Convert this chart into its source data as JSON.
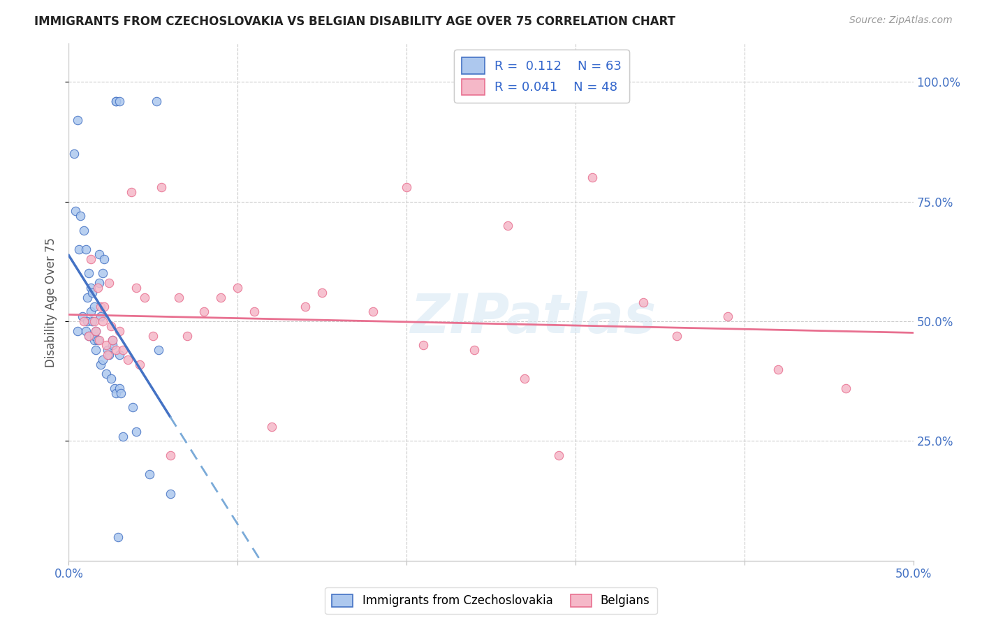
{
  "title": "IMMIGRANTS FROM CZECHOSLOVAKIA VS BELGIAN DISABILITY AGE OVER 75 CORRELATION CHART",
  "source": "Source: ZipAtlas.com",
  "ylabel": "Disability Age Over 75",
  "ytick_labels": [
    "25.0%",
    "50.0%",
    "75.0%",
    "100.0%"
  ],
  "ytick_values": [
    0.25,
    0.5,
    0.75,
    1.0
  ],
  "xlim": [
    0.0,
    0.5
  ],
  "ylim": [
    0.0,
    1.08
  ],
  "blue_color": "#adc8ee",
  "pink_color": "#f5b8c8",
  "trend_blue_solid": "#4472c4",
  "trend_blue_dashed": "#7aaad8",
  "trend_pink": "#e87090",
  "watermark_text": "ZIPatlas",
  "blue_scatter_x": [
    0.003,
    0.004,
    0.005,
    0.005,
    0.006,
    0.007,
    0.008,
    0.009,
    0.01,
    0.01,
    0.011,
    0.011,
    0.012,
    0.012,
    0.013,
    0.013,
    0.014,
    0.014,
    0.015,
    0.015,
    0.015,
    0.016,
    0.016,
    0.017,
    0.018,
    0.018,
    0.019,
    0.019,
    0.02,
    0.02,
    0.021,
    0.022,
    0.023,
    0.024,
    0.025,
    0.026,
    0.026,
    0.027,
    0.028,
    0.03,
    0.03,
    0.031,
    0.032,
    0.038,
    0.04,
    0.048,
    0.052,
    0.053,
    0.06,
    0.028,
    0.028,
    0.029,
    0.03
  ],
  "blue_scatter_y": [
    0.85,
    0.73,
    0.92,
    0.48,
    0.65,
    0.72,
    0.51,
    0.69,
    0.65,
    0.48,
    0.55,
    0.5,
    0.6,
    0.47,
    0.57,
    0.52,
    0.56,
    0.5,
    0.46,
    0.47,
    0.53,
    0.44,
    0.48,
    0.46,
    0.58,
    0.64,
    0.51,
    0.41,
    0.6,
    0.42,
    0.63,
    0.39,
    0.44,
    0.43,
    0.38,
    0.45,
    0.46,
    0.36,
    0.35,
    0.43,
    0.36,
    0.35,
    0.26,
    0.32,
    0.27,
    0.18,
    0.96,
    0.44,
    0.14,
    0.96,
    0.96,
    0.05,
    0.96
  ],
  "pink_scatter_x": [
    0.009,
    0.012,
    0.013,
    0.015,
    0.016,
    0.017,
    0.018,
    0.019,
    0.02,
    0.021,
    0.022,
    0.023,
    0.024,
    0.025,
    0.026,
    0.028,
    0.03,
    0.032,
    0.035,
    0.037,
    0.04,
    0.042,
    0.045,
    0.05,
    0.055,
    0.06,
    0.065,
    0.07,
    0.08,
    0.09,
    0.1,
    0.11,
    0.12,
    0.14,
    0.15,
    0.18,
    0.2,
    0.21,
    0.24,
    0.26,
    0.27,
    0.29,
    0.31,
    0.34,
    0.36,
    0.39,
    0.42,
    0.46
  ],
  "pink_scatter_y": [
    0.5,
    0.47,
    0.63,
    0.5,
    0.48,
    0.57,
    0.46,
    0.53,
    0.5,
    0.53,
    0.45,
    0.43,
    0.58,
    0.49,
    0.46,
    0.44,
    0.48,
    0.44,
    0.42,
    0.77,
    0.57,
    0.41,
    0.55,
    0.47,
    0.78,
    0.22,
    0.55,
    0.47,
    0.52,
    0.55,
    0.57,
    0.52,
    0.28,
    0.53,
    0.56,
    0.52,
    0.78,
    0.45,
    0.44,
    0.7,
    0.38,
    0.22,
    0.8,
    0.54,
    0.47,
    0.51,
    0.4,
    0.36
  ],
  "background_color": "#ffffff"
}
